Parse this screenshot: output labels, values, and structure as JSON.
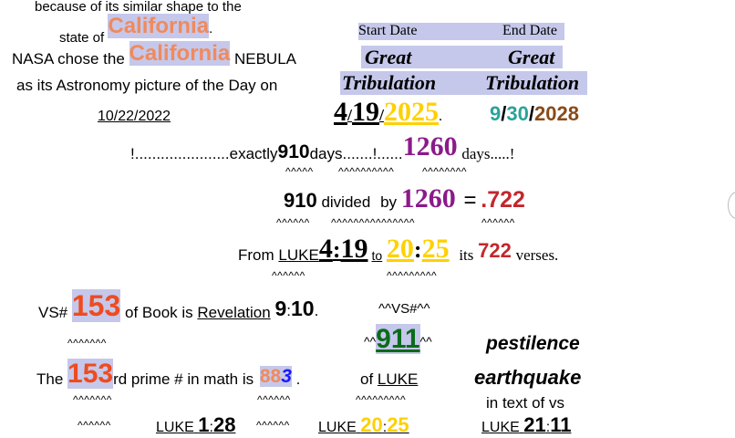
{
  "left": {
    "line1": "because of its similar shape to the",
    "line2_a": "state of",
    "line2_word": "California",
    "line2_dot": ".",
    "line3_a": "NASA chose the",
    "line3_word": "California",
    "line3_b": "NEBULA",
    "line4": "as its Astronomy picture of the Day on",
    "date": "10/22/2022"
  },
  "header": {
    "start_label": "Start Date",
    "end_label": "End Date",
    "great1": "Great",
    "great2": "Great",
    "trib1": "Tribulation",
    "trib2": "Tribulation"
  },
  "start_date": {
    "m": "4",
    "s1": "/",
    "d": "19",
    "s2": "/",
    "y": "2025",
    "dot": "."
  },
  "end_date": {
    "m": "9",
    "s1": "/",
    "d": "30",
    "s2": "/",
    "y": "2028"
  },
  "exactly": {
    "a": "!......................exactly",
    "n1": "910",
    "b": "days.......!......",
    "n2": "1260",
    "c": "days.....!"
  },
  "tildes": {
    "t1a": "^^^^^",
    "t1b": "^^^^^^^^^^",
    "t1c": "^^^^^^^^",
    "t2a": "^^^^^^",
    "t2b": "^^^^^^^^^^^^^^^",
    "t2c": "^^^^^^",
    "t3a": "^^^^^^",
    "t3b": "^^^^^^^^^",
    "t4": "^^^^^^^",
    "t5a": "^^^^^^^",
    "t5b": "^^^^^^",
    "t5c": "^^^^^^^^^",
    "t6a": "^^^^^^",
    "t6b": "^^^^^^"
  },
  "division": {
    "n1": "910",
    "a": "divided",
    "b": "by",
    "n2": "1260",
    "eq": "=",
    "r": ".722"
  },
  "from_line": {
    "a": "From",
    "book": "LUKE",
    "ch": "4",
    "colon1": ":",
    "vs": "19",
    "to": "to",
    "ch2": "20",
    "colon2": ":",
    "vs2": "25",
    "its": "its",
    "n": "722",
    "verses": "verses."
  },
  "vs_line": {
    "a": "VS#",
    "n": "153",
    "b": "of Book is",
    "book": "Revelation",
    "ch": "9",
    "colon": ":",
    "vs": "10",
    "dot": "."
  },
  "vs_hash": "^^VS#^^",
  "n911": {
    "pre": "^^",
    "n": "911",
    "post": "^^"
  },
  "pestilence": "pestilence",
  "earthquake": "earthquake",
  "prime_line": {
    "a": "The",
    "n": "153",
    "b": "rd prime # in math is",
    "p1": "88",
    "p2": "3",
    "dot": "."
  },
  "of_luke": {
    "a": "of",
    "book": "LUKE"
  },
  "in_text": "in text of vs",
  "refs": {
    "r1_book": "LUKE",
    "r1_ch": "1",
    "r1_colon": ":",
    "r1_vs": "28",
    "r2_book": "LUKE",
    "r2_ch": "20",
    "r2_colon": ":",
    "r2_vs": "25",
    "r3_book": "LUKE",
    "r3_ch": "21",
    "r3_colon": ":",
    "r3_vs": "11"
  }
}
